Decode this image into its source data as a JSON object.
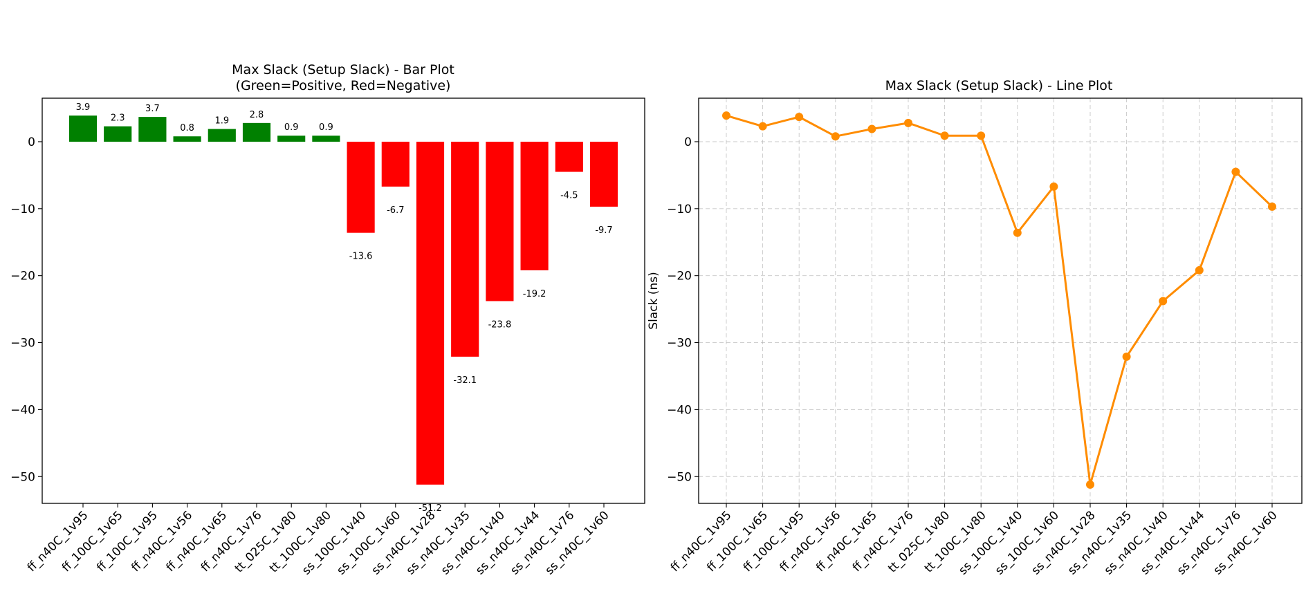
{
  "colors": {
    "positive": "#008000",
    "negative": "#ff0000",
    "line": "#ff8c00"
  },
  "chart_data": [
    {
      "type": "bar",
      "title": "Max Slack (Setup Slack) - Bar Plot",
      "subtitle": "(Green=Positive, Red=Negative)",
      "xlabel": "",
      "ylabel": "",
      "categories": [
        "ff_n40C_1v95",
        "ff_100C_1v65",
        "ff_100C_1v95",
        "ff_n40C_1v56",
        "ff_n40C_1v65",
        "ff_n40C_1v76",
        "tt_025C_1v80",
        "tt_100C_1v80",
        "ss_100C_1v40",
        "ss_100C_1v60",
        "ss_n40C_1v28",
        "ss_n40C_1v35",
        "ss_n40C_1v40",
        "ss_n40C_1v44",
        "ss_n40C_1v76",
        "ss_n40C_1v60"
      ],
      "values": [
        3.9,
        2.3,
        3.7,
        0.8,
        1.9,
        2.8,
        0.9,
        0.9,
        -13.6,
        -6.7,
        -51.2,
        -32.1,
        -23.8,
        -19.2,
        -4.5,
        -9.7
      ],
      "data_labels": [
        "3.9",
        "2.3",
        "3.7",
        "0.8",
        "1.9",
        "2.8",
        "0.9",
        "0.9",
        "-13.6",
        "-6.7",
        "-51.2",
        "-32.1",
        "-23.8",
        "-19.2",
        "-4.5",
        "-9.7"
      ],
      "yticks": [
        0,
        -10,
        -20,
        -30,
        -40,
        -50
      ],
      "ytick_labels": [
        "0",
        "−10",
        "−20",
        "−30",
        "−40",
        "−50"
      ],
      "ylim": [
        -54,
        6.5
      ],
      "grid": false
    },
    {
      "type": "line",
      "title": "Max Slack (Setup Slack) - Line Plot",
      "xlabel": "",
      "ylabel": "Slack (ns)",
      "categories": [
        "ff_n40C_1v95",
        "ff_100C_1v65",
        "ff_100C_1v95",
        "ff_n40C_1v56",
        "ff_n40C_1v65",
        "ff_n40C_1v76",
        "tt_025C_1v80",
        "tt_100C_1v80",
        "ss_100C_1v40",
        "ss_100C_1v60",
        "ss_n40C_1v28",
        "ss_n40C_1v35",
        "ss_n40C_1v40",
        "ss_n40C_1v44",
        "ss_n40C_1v76",
        "ss_n40C_1v60"
      ],
      "values": [
        3.9,
        2.3,
        3.7,
        0.8,
        1.9,
        2.8,
        0.9,
        0.9,
        -13.6,
        -6.7,
        -51.2,
        -32.1,
        -23.8,
        -19.2,
        -4.5,
        -9.7
      ],
      "yticks": [
        0,
        -10,
        -20,
        -30,
        -40,
        -50
      ],
      "ytick_labels": [
        "0",
        "−10",
        "−20",
        "−30",
        "−40",
        "−50"
      ],
      "ylim": [
        -54,
        6.5
      ],
      "grid": true
    }
  ]
}
